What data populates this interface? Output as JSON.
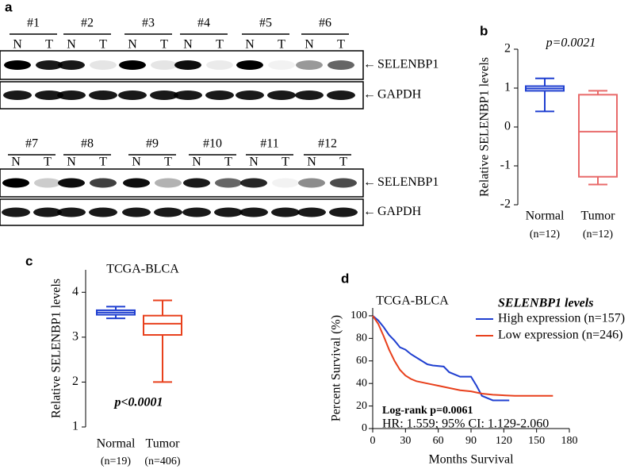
{
  "blots": {
    "panel_label": "a",
    "lanes": [
      "N",
      "T"
    ],
    "rows": [
      {
        "samples": [
          "#1",
          "#2",
          "#3",
          "#4",
          "#5",
          "#6"
        ],
        "targets": [
          "SELENBP1",
          "GAPDH"
        ]
      },
      {
        "samples": [
          "#7",
          "#8",
          "#9",
          "#10",
          "#11",
          "#12"
        ],
        "targets": [
          "SELENBP1",
          "GAPDH"
        ]
      }
    ]
  },
  "chart_data": [
    {
      "type": "box",
      "panel_label": "b",
      "annotation": "p=0.0021",
      "y_label": "Relative SELENBP1 levels",
      "categories": [
        "Normal",
        "Tumor"
      ],
      "sublabels": [
        "(n=12)",
        "(n=12)"
      ],
      "colors": [
        "#1f3fd0",
        "#e86a6a"
      ],
      "boxes": [
        {
          "min": 0.4,
          "q1": 0.93,
          "median": 0.99,
          "q3": 1.05,
          "max": 1.25
        },
        {
          "min": -1.48,
          "q1": -1.28,
          "median": -0.12,
          "q3": 0.83,
          "max": 0.93
        }
      ],
      "ylim": [
        -2,
        2
      ],
      "yticks": [
        -2,
        -1,
        0,
        1,
        2
      ]
    },
    {
      "type": "box",
      "panel_label": "c",
      "title": "TCGA-BLCA",
      "annotation": "p<0.0001",
      "y_label": "Relative SELENBP1 levels",
      "categories": [
        "Normal",
        "Tumor"
      ],
      "sublabels": [
        "(n=19)",
        "(n=406)"
      ],
      "colors": [
        "#1f3fd0",
        "#e8401c"
      ],
      "boxes": [
        {
          "min": 3.42,
          "q1": 3.5,
          "median": 3.55,
          "q3": 3.6,
          "max": 3.68
        },
        {
          "min": 2.0,
          "q1": 3.05,
          "median": 3.3,
          "q3": 3.48,
          "max": 3.82
        }
      ],
      "ylim": [
        1,
        4.5
      ],
      "yticks": [
        1,
        2,
        3,
        4
      ]
    },
    {
      "type": "line",
      "panel_label": "d",
      "title": "TCGA-BLCA",
      "x_label": "Months Survival",
      "y_label": "Percent Survival (%)",
      "legend_title": "SELENBP1 levels",
      "annotations": [
        "Log-rank p=0.0061",
        "HR: 1.559; 95% CI: 1.129-2.060"
      ],
      "series": [
        {
          "name": "High expression (n=157)",
          "color": "#1f3fd0",
          "x": [
            0,
            5,
            10,
            15,
            20,
            25,
            30,
            35,
            40,
            45,
            50,
            55,
            65,
            70,
            80,
            90,
            95,
            100,
            110,
            125
          ],
          "values": [
            100,
            96,
            90,
            83,
            78,
            72,
            70,
            66,
            63,
            60,
            57,
            56,
            55,
            50,
            46,
            46,
            38,
            29,
            25,
            25
          ]
        },
        {
          "name": "Low expression (n=246)",
          "color": "#e8401c",
          "x": [
            0,
            5,
            10,
            15,
            20,
            25,
            30,
            35,
            40,
            50,
            60,
            70,
            80,
            90,
            100,
            110,
            130,
            165
          ],
          "values": [
            100,
            93,
            82,
            70,
            60,
            52,
            47,
            44,
            42,
            40,
            38,
            36,
            34,
            33,
            31,
            30,
            29,
            29
          ]
        }
      ],
      "xlim": [
        0,
        180
      ],
      "xticks": [
        0,
        30,
        60,
        90,
        120,
        150,
        180
      ],
      "ylim": [
        0,
        107
      ],
      "yticks": [
        0,
        20,
        40,
        60,
        80,
        100
      ]
    }
  ]
}
